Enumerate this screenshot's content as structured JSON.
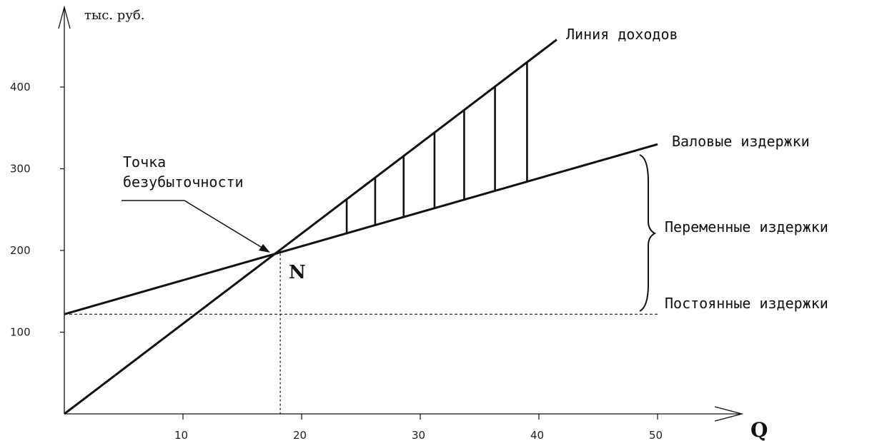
{
  "chart_data": {
    "type": "line",
    "y_unit_label": "тыс. руб.",
    "x_axis_label": "Q",
    "xlim": [
      0,
      60
    ],
    "ylim": [
      0,
      500
    ],
    "x_ticks": [
      10,
      20,
      30,
      40,
      50
    ],
    "y_ticks": [
      100,
      200,
      300,
      400
    ],
    "grid": false,
    "series": [
      {
        "name": "Линия доходов",
        "x": [
          0,
          41.5
        ],
        "y": [
          0,
          458
        ],
        "color": "#111111"
      },
      {
        "name": "Валовые издержки",
        "x": [
          0,
          50
        ],
        "y": [
          122,
          330
        ],
        "color": "#111111"
      },
      {
        "name": "Постоянные издержки",
        "x": [
          0,
          50
        ],
        "y": [
          122,
          122
        ],
        "color": "#111111",
        "style": "dashed"
      }
    ],
    "hatch_x": [
      23.8,
      26.2,
      28.6,
      31.2,
      33.7,
      36.3,
      39.0
    ],
    "break_even": {
      "x": 18.2,
      "y": 196,
      "point_label": "N",
      "label_lines": [
        "Точка",
        "безубыточности"
      ]
    },
    "brace_label": "Переменные издержки"
  }
}
